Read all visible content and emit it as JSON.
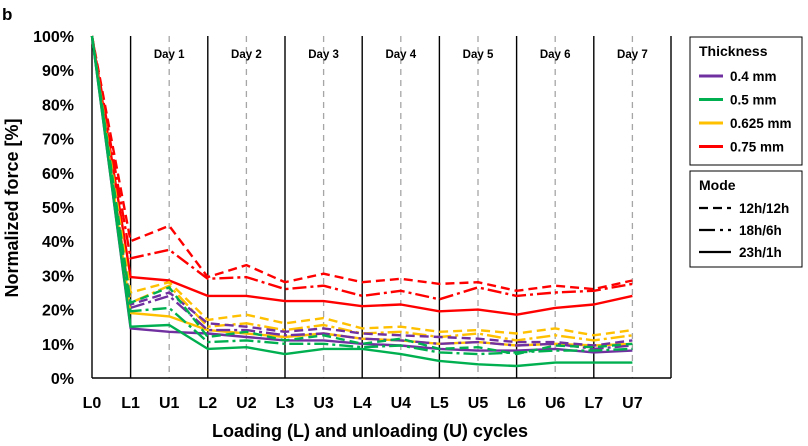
{
  "panel_label": "b",
  "legend_thickness_title": "Thickness",
  "legend_mode_title": "Mode",
  "chart_data": {
    "type": "line",
    "title": "",
    "xlabel": "Loading (L) and unloading (U) cycles",
    "ylabel": "Normalized force [%]",
    "ylim": [
      0,
      100
    ],
    "yticks": [
      0,
      10,
      20,
      30,
      40,
      50,
      60,
      70,
      80,
      90,
      100
    ],
    "ytick_labels": [
      "0%",
      "10%",
      "20%",
      "30%",
      "40%",
      "50%",
      "60%",
      "70%",
      "80%",
      "90%",
      "100%"
    ],
    "categories": [
      "L0",
      "L1",
      "U1",
      "L2",
      "U2",
      "L3",
      "U3",
      "L4",
      "U4",
      "L5",
      "U5",
      "L6",
      "U6",
      "L7",
      "U7"
    ],
    "day_labels": [
      "Day 1",
      "Day 2",
      "Day 3",
      "Day 4",
      "Day 5",
      "Day 6",
      "Day 7"
    ],
    "thickness_legend": [
      {
        "label": "0.4 mm",
        "color": "#7030a0"
      },
      {
        "label": "0.5 mm",
        "color": "#00b050"
      },
      {
        "label": "0.625 mm",
        "color": "#ffc000"
      },
      {
        "label": "0.75 mm",
        "color": "#ff0000"
      }
    ],
    "mode_legend": [
      {
        "label": "12h/12h",
        "style": "dashed"
      },
      {
        "label": "18h/6h",
        "style": "dashdot"
      },
      {
        "label": "23h/1h",
        "style": "solid"
      }
    ],
    "series": [
      {
        "name": "0.75 mm 12h/12h",
        "color": "#ff0000",
        "style": "dashed",
        "values": [
          100,
          40,
          44.5,
          29.5,
          33,
          28,
          30.5,
          28,
          29,
          27.5,
          28,
          25.5,
          27,
          26,
          28.5
        ]
      },
      {
        "name": "0.75 mm 18h/6h",
        "color": "#ff0000",
        "style": "dashdot",
        "values": [
          100,
          35,
          37.5,
          29,
          29.5,
          26,
          27,
          24,
          25.5,
          23,
          26.5,
          24,
          25,
          25.5,
          27.5
        ]
      },
      {
        "name": "0.75 mm 23h/1h",
        "color": "#ff0000",
        "style": "solid",
        "values": [
          100,
          29.5,
          28.5,
          24,
          24,
          22.5,
          22.5,
          21,
          21.5,
          19.5,
          20,
          18.5,
          20.5,
          21.5,
          24
        ]
      },
      {
        "name": "0.625 mm 12h/12h",
        "color": "#ffc000",
        "style": "dashed",
        "values": [
          100,
          25,
          28,
          17,
          18.5,
          16,
          17.5,
          14.5,
          15,
          13.5,
          14,
          13,
          14.5,
          12.5,
          14
        ]
      },
      {
        "name": "0.625 mm 18h/6h",
        "color": "#ffc000",
        "style": "dashdot",
        "values": [
          100,
          22,
          27,
          15,
          16,
          14,
          15.5,
          13,
          13.5,
          12,
          13,
          11,
          12.5,
          11,
          12.5
        ]
      },
      {
        "name": "0.625 mm 23h/1h",
        "color": "#ffc000",
        "style": "solid",
        "values": [
          100,
          19,
          18,
          14,
          13,
          12,
          13,
          11.5,
          11,
          10,
          10.5,
          9.5,
          10,
          9.5,
          10
        ]
      },
      {
        "name": "0.4 mm 12h/12h",
        "color": "#7030a0",
        "style": "dashed",
        "values": [
          100,
          21.5,
          25,
          16,
          15,
          13.5,
          14.5,
          13,
          12.5,
          12,
          11.5,
          10.5,
          10.5,
          9.5,
          11
        ]
      },
      {
        "name": "0.4 mm 18h/6h",
        "color": "#7030a0",
        "style": "dashdot",
        "values": [
          100,
          20.5,
          24,
          14,
          14,
          12.5,
          13,
          11.5,
          11,
          10,
          10.5,
          9.5,
          10,
          8.5,
          9.5
        ]
      },
      {
        "name": "0.4 mm 23h/1h",
        "color": "#7030a0",
        "style": "solid",
        "values": [
          100,
          14.5,
          13.5,
          13,
          12,
          11,
          11,
          10,
          9.5,
          8.5,
          8,
          8,
          8.5,
          7.5,
          8
        ]
      },
      {
        "name": "0.5 mm 12h/12h",
        "color": "#00b050",
        "style": "dashed",
        "values": [
          100,
          22,
          26.5,
          12,
          13.5,
          11,
          12.5,
          10,
          11.5,
          8.5,
          9,
          7,
          9.5,
          9,
          10
        ]
      },
      {
        "name": "0.5 mm 18h/6h",
        "color": "#00b050",
        "style": "dashdot",
        "values": [
          100,
          19.5,
          20.5,
          10.5,
          11,
          10,
          10,
          9,
          9.5,
          7.5,
          7,
          7.5,
          8,
          8,
          8.5
        ]
      },
      {
        "name": "0.5 mm 23h/1h",
        "color": "#00b050",
        "style": "solid",
        "values": [
          100,
          15,
          15.5,
          8.5,
          9,
          7,
          8.5,
          8.5,
          7,
          5,
          4,
          3.5,
          4.5,
          4.5,
          4.5
        ]
      }
    ]
  }
}
